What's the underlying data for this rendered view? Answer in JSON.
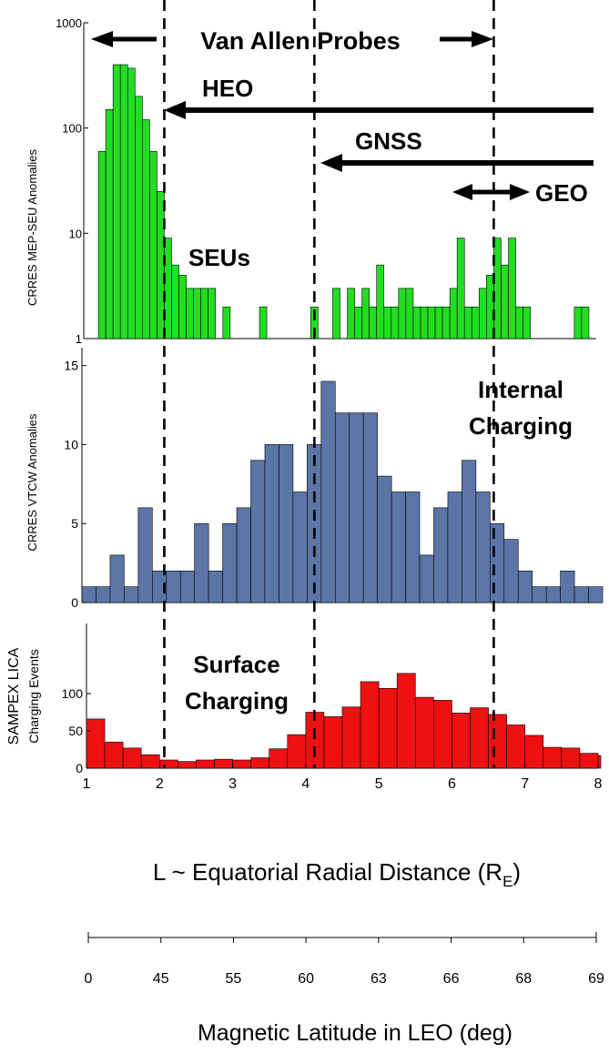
{
  "colors": {
    "seu": "#22dd22",
    "internal": "#5b75a6",
    "surface": "#ee1111"
  },
  "annotations": {
    "van_allen": "Van Allen Probes",
    "heo": "HEO",
    "gnss": "GNSS",
    "geo": "GEO",
    "seus": "SEUs",
    "internal_1": "Internal",
    "internal_2": "Charging",
    "surface_1": "Surface",
    "surface_2": "Charging"
  },
  "boundaries_L": [
    2.1,
    4.15,
    6.6
  ],
  "x_axis": {
    "label_main": "L ~ Equatorial Radial Distance (R",
    "label_sub": "E",
    "label_close": ")",
    "ticks": [
      1,
      2,
      3,
      4,
      5,
      6,
      7,
      8
    ]
  },
  "lat_axis": {
    "label": "Magnetic Latitude in LEO (deg)",
    "ticks": [
      "0",
      "45",
      "55",
      "60",
      "63",
      "66",
      "68",
      "69"
    ]
  },
  "chart_data": [
    {
      "type": "bar",
      "scale": "log",
      "ylabel": "CRRES MEP-SEU Anomalies",
      "ylim": [
        1,
        1000
      ],
      "yticks": [
        "1",
        "10",
        "100",
        "1000"
      ],
      "xlim": [
        1,
        8
      ],
      "bin_width": 0.1,
      "bins": [
        [
          1.2,
          60
        ],
        [
          1.3,
          150
        ],
        [
          1.4,
          400
        ],
        [
          1.5,
          400
        ],
        [
          1.6,
          370
        ],
        [
          1.7,
          200
        ],
        [
          1.8,
          120
        ],
        [
          1.9,
          60
        ],
        [
          2.0,
          25
        ],
        [
          2.1,
          9
        ],
        [
          2.2,
          5
        ],
        [
          2.3,
          4
        ],
        [
          2.4,
          3
        ],
        [
          2.5,
          3
        ],
        [
          2.6,
          3
        ],
        [
          2.7,
          3
        ],
        [
          2.9,
          2
        ],
        [
          3.4,
          2
        ],
        [
          4.1,
          2
        ],
        [
          4.2,
          1
        ],
        [
          4.4,
          3
        ],
        [
          4.6,
          3
        ],
        [
          4.7,
          2
        ],
        [
          4.8,
          3
        ],
        [
          4.9,
          2
        ],
        [
          5.0,
          5
        ],
        [
          5.1,
          2
        ],
        [
          5.2,
          2
        ],
        [
          5.3,
          3
        ],
        [
          5.4,
          3
        ],
        [
          5.5,
          2
        ],
        [
          5.6,
          2
        ],
        [
          5.7,
          2
        ],
        [
          5.8,
          2
        ],
        [
          5.9,
          2
        ],
        [
          6.0,
          3
        ],
        [
          6.1,
          9
        ],
        [
          6.2,
          2
        ],
        [
          6.3,
          2
        ],
        [
          6.4,
          3
        ],
        [
          6.5,
          4
        ],
        [
          6.6,
          9
        ],
        [
          6.7,
          5
        ],
        [
          6.8,
          9
        ],
        [
          6.9,
          2
        ],
        [
          7.0,
          2
        ],
        [
          7.7,
          2
        ],
        [
          7.8,
          2
        ]
      ]
    },
    {
      "type": "bar",
      "ylabel": "CRRES VTCW Anomalies",
      "ylim": [
        0,
        15
      ],
      "yticks": [
        0,
        5,
        10,
        15
      ],
      "xlim": [
        1,
        8
      ],
      "bin_width": 0.2,
      "values": [
        1,
        1,
        3,
        1,
        6,
        2,
        2,
        2,
        5,
        2,
        5,
        6,
        9,
        10,
        10,
        7,
        10,
        14,
        12,
        12,
        12,
        8,
        7,
        7,
        3,
        6,
        7,
        9,
        7,
        5,
        4,
        2,
        1,
        1,
        2,
        1,
        1
      ]
    },
    {
      "type": "bar",
      "ylabel": "SAMPEX LICA",
      "ylabel2": "Charging Events",
      "ylim": [
        0,
        135
      ],
      "yticks": [
        0,
        50,
        100
      ],
      "xlim": [
        1,
        8
      ],
      "bin_width": 0.25,
      "values": [
        66,
        35,
        27,
        18,
        11,
        9,
        11,
        12,
        11,
        14,
        26,
        45,
        75,
        69,
        82,
        116,
        107,
        127,
        95,
        91,
        74,
        81,
        72,
        58,
        44,
        28,
        27,
        20,
        17
      ]
    }
  ]
}
